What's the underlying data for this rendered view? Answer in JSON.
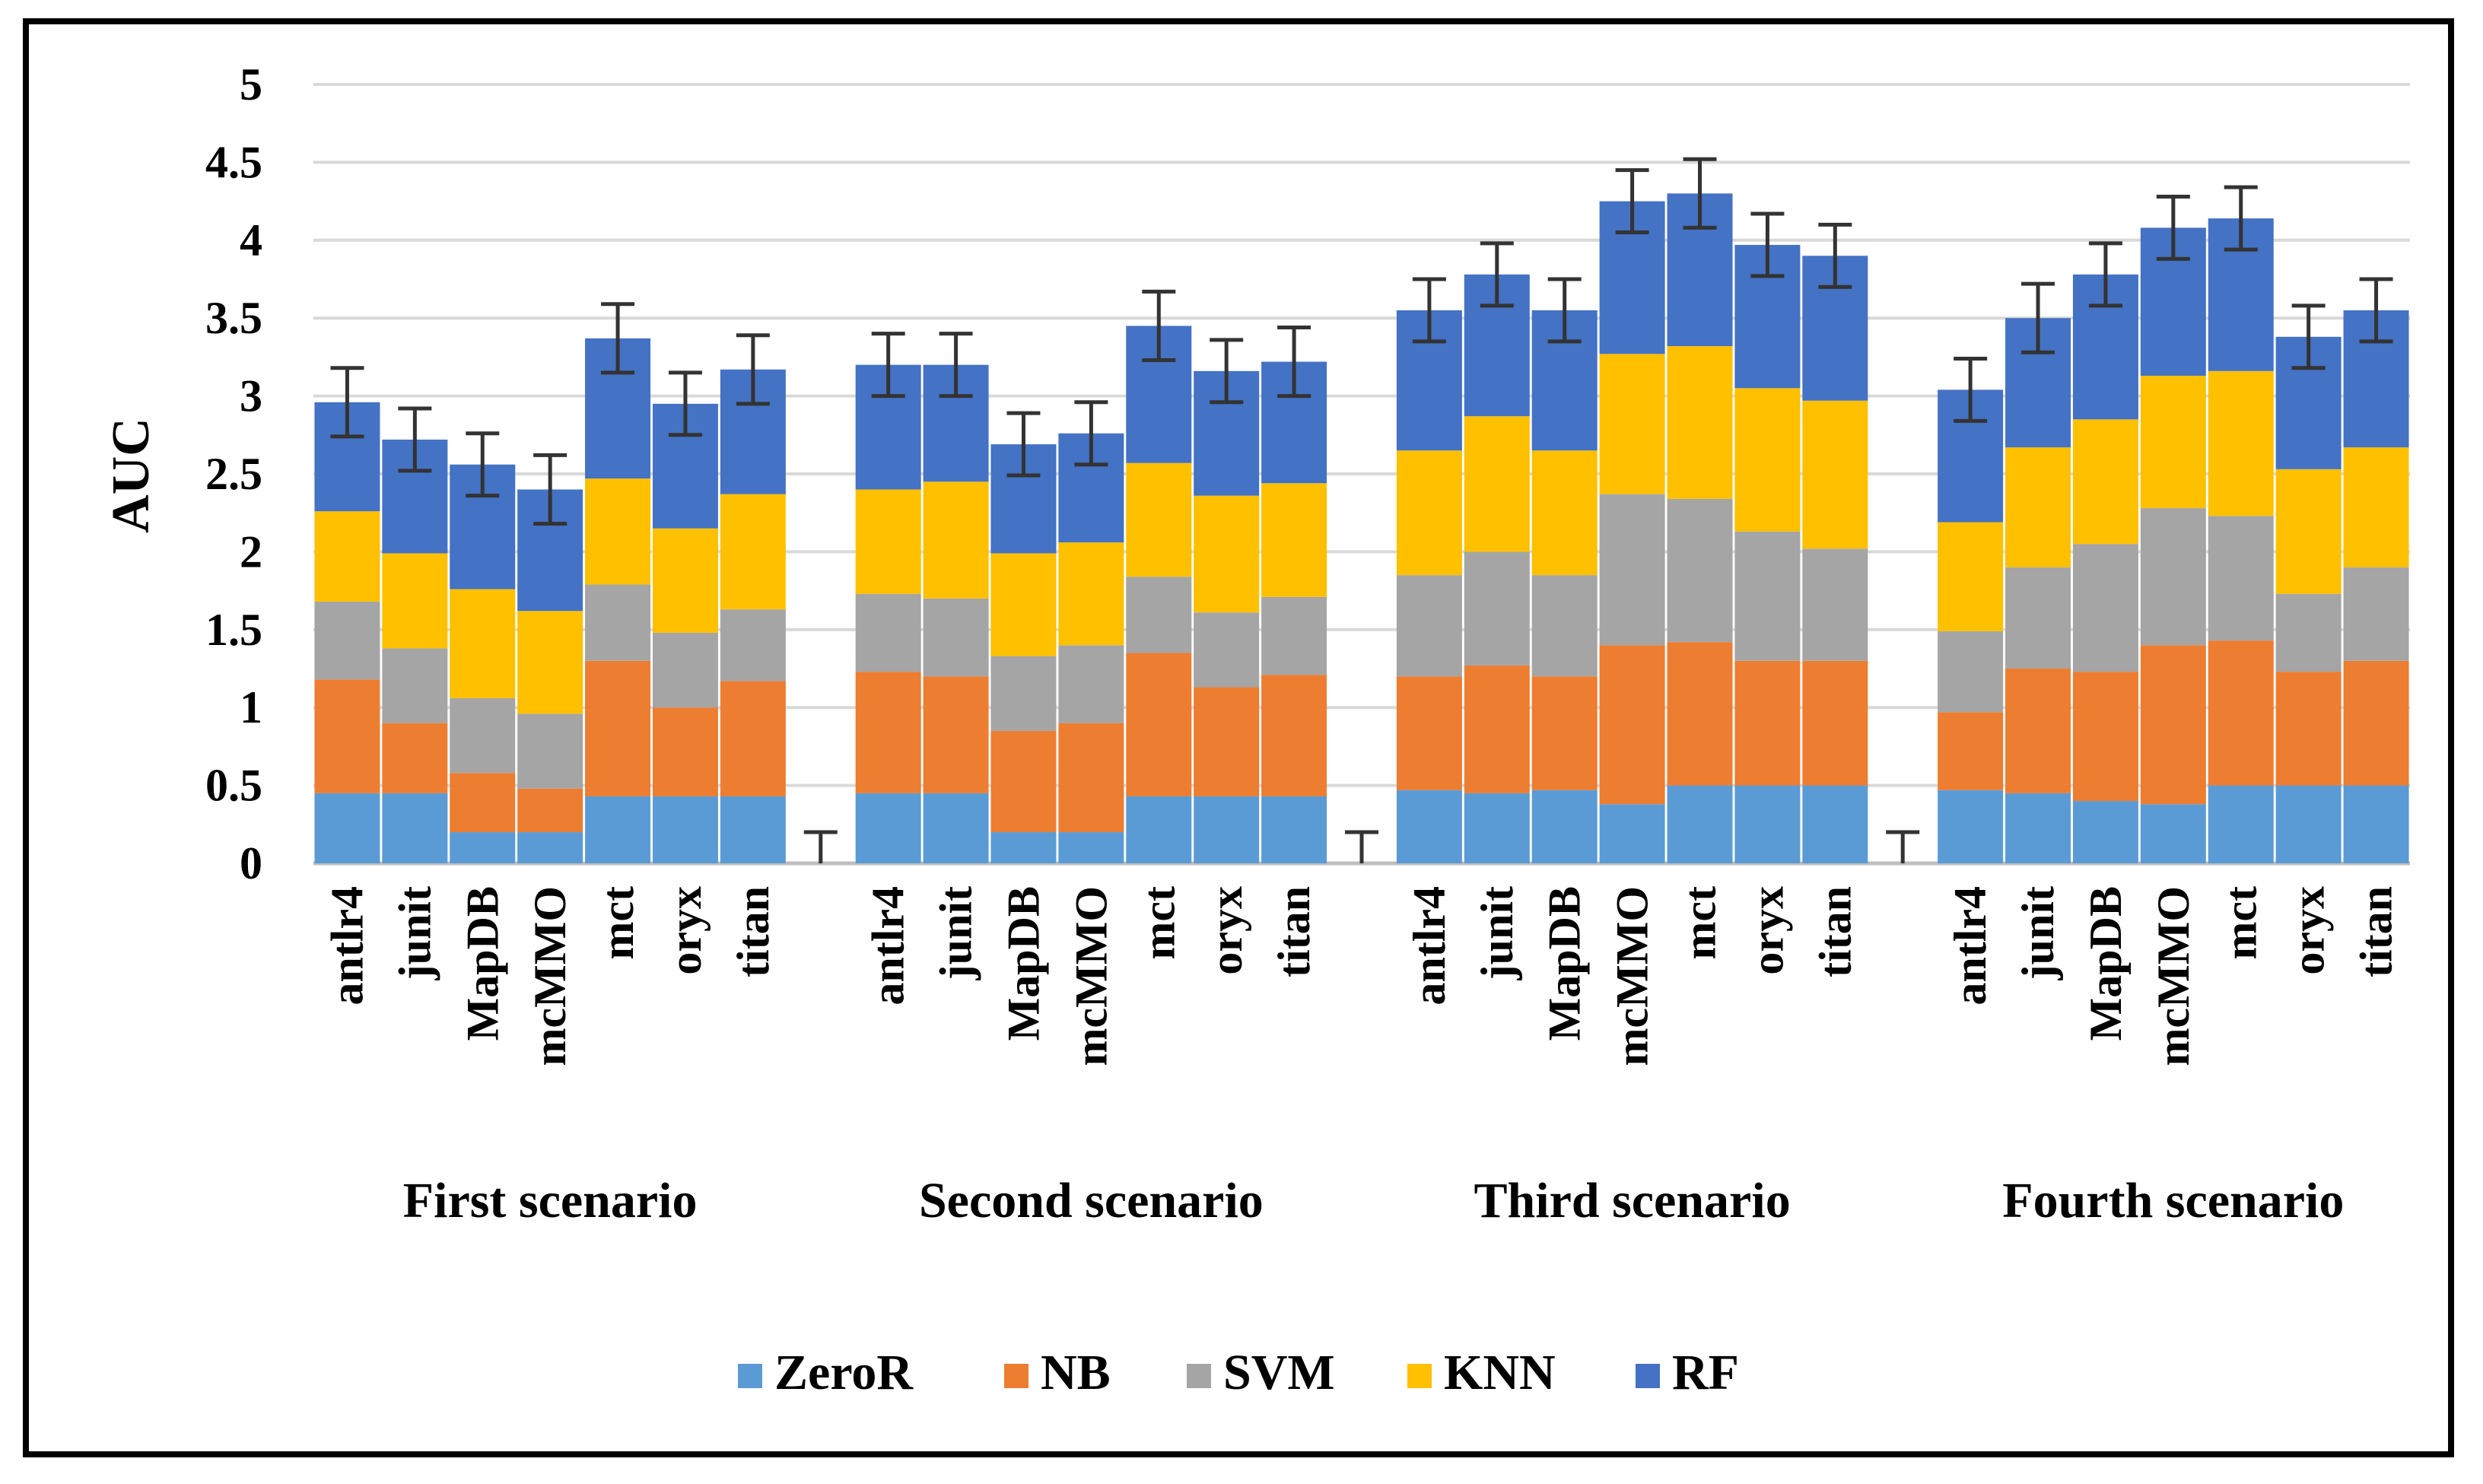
{
  "chart_data": {
    "type": "bar",
    "stacked": true,
    "ylabel": "AUC",
    "xlabel": "",
    "ylim": [
      0,
      5
    ],
    "yticks": [
      "0",
      "0.5",
      "1",
      "1.5",
      "2",
      "2.5",
      "3",
      "3.5",
      "4",
      "4.5",
      "5"
    ],
    "grid": true,
    "legend_position": "bottom",
    "series_names": [
      "ZeroR",
      "NB",
      "SVM",
      "KNN",
      "RF"
    ],
    "colors": [
      "#5B9BD5",
      "#ED7D31",
      "#A5A5A5",
      "#FFC000",
      "#4472C4"
    ],
    "groups": [
      {
        "name": "First scenario",
        "categories": [
          "antlr4",
          "junit",
          "MapDB",
          "mcMMO",
          "mct",
          "oryx",
          "titan"
        ],
        "series": [
          {
            "name": "ZeroR",
            "values": [
              0.45,
              0.45,
              0.2,
              0.2,
              0.43,
              0.43,
              0.43
            ]
          },
          {
            "name": "NB",
            "values": [
              0.73,
              0.45,
              0.38,
              0.28,
              0.87,
              0.57,
              0.74
            ]
          },
          {
            "name": "SVM",
            "values": [
              0.5,
              0.48,
              0.48,
              0.48,
              0.49,
              0.48,
              0.46
            ]
          },
          {
            "name": "KNN",
            "values": [
              0.58,
              0.61,
              0.7,
              0.66,
              0.68,
              0.67,
              0.74
            ]
          },
          {
            "name": "RF",
            "values": [
              0.7,
              0.73,
              0.8,
              0.78,
              0.9,
              0.8,
              0.8
            ]
          }
        ],
        "error": [
          0.22,
          0.2,
          0.2,
          0.22,
          0.22,
          0.2,
          0.22
        ]
      },
      {
        "name": "Second scenario",
        "categories": [
          "antlr4",
          "junit",
          "MapDB",
          "mcMMO",
          "mct",
          "oryx",
          "titan"
        ],
        "series": [
          {
            "name": "ZeroR",
            "values": [
              0.45,
              0.45,
              0.2,
              0.2,
              0.43,
              0.43,
              0.43
            ]
          },
          {
            "name": "NB",
            "values": [
              0.78,
              0.75,
              0.65,
              0.7,
              0.92,
              0.7,
              0.78
            ]
          },
          {
            "name": "SVM",
            "values": [
              0.5,
              0.5,
              0.48,
              0.5,
              0.49,
              0.48,
              0.5
            ]
          },
          {
            "name": "KNN",
            "values": [
              0.67,
              0.75,
              0.66,
              0.66,
              0.73,
              0.75,
              0.73
            ]
          },
          {
            "name": "RF",
            "values": [
              0.8,
              0.75,
              0.7,
              0.7,
              0.88,
              0.8,
              0.78
            ]
          }
        ],
        "error": [
          0.2,
          0.2,
          0.2,
          0.2,
          0.22,
          0.2,
          0.22
        ]
      },
      {
        "name": "Third scenario",
        "categories": [
          "antlr4",
          "junit",
          "MapDB",
          "mcMMO",
          "mct",
          "oryx",
          "titan"
        ],
        "series": [
          {
            "name": "ZeroR",
            "values": [
              0.47,
              0.45,
              0.47,
              0.38,
              0.5,
              0.5,
              0.5
            ]
          },
          {
            "name": "NB",
            "values": [
              0.73,
              0.82,
              0.73,
              1.02,
              0.92,
              0.8,
              0.8
            ]
          },
          {
            "name": "SVM",
            "values": [
              0.65,
              0.73,
              0.65,
              0.97,
              0.92,
              0.83,
              0.72
            ]
          },
          {
            "name": "KNN",
            "values": [
              0.8,
              0.87,
              0.8,
              0.9,
              0.98,
              0.92,
              0.95
            ]
          },
          {
            "name": "RF",
            "values": [
              0.9,
              0.91,
              0.9,
              0.98,
              0.98,
              0.92,
              0.93
            ]
          }
        ],
        "error": [
          0.2,
          0.2,
          0.2,
          0.2,
          0.22,
          0.2,
          0.2
        ]
      },
      {
        "name": "Fourth scenario",
        "categories": [
          "antlr4",
          "junit",
          "MapDB",
          "mcMMO",
          "mct",
          "oryx",
          "titan"
        ],
        "series": [
          {
            "name": "ZeroR",
            "values": [
              0.47,
              0.45,
              0.4,
              0.38,
              0.5,
              0.5,
              0.5
            ]
          },
          {
            "name": "NB",
            "values": [
              0.5,
              0.8,
              0.83,
              1.02,
              0.93,
              0.73,
              0.8
            ]
          },
          {
            "name": "SVM",
            "values": [
              0.52,
              0.65,
              0.82,
              0.88,
              0.8,
              0.5,
              0.6
            ]
          },
          {
            "name": "KNN",
            "values": [
              0.7,
              0.77,
              0.8,
              0.85,
              0.93,
              0.8,
              0.77
            ]
          },
          {
            "name": "RF",
            "values": [
              0.85,
              0.83,
              0.93,
              0.95,
              0.98,
              0.85,
              0.88
            ]
          }
        ],
        "error": [
          0.2,
          0.22,
          0.2,
          0.2,
          0.2,
          0.2,
          0.2
        ]
      }
    ],
    "gap_markers": [
      {
        "after_group": "First scenario",
        "value": 0.2
      },
      {
        "after_group": "Second scenario",
        "value": 0.2
      },
      {
        "after_group": "Third scenario",
        "value": 0.2
      }
    ]
  }
}
